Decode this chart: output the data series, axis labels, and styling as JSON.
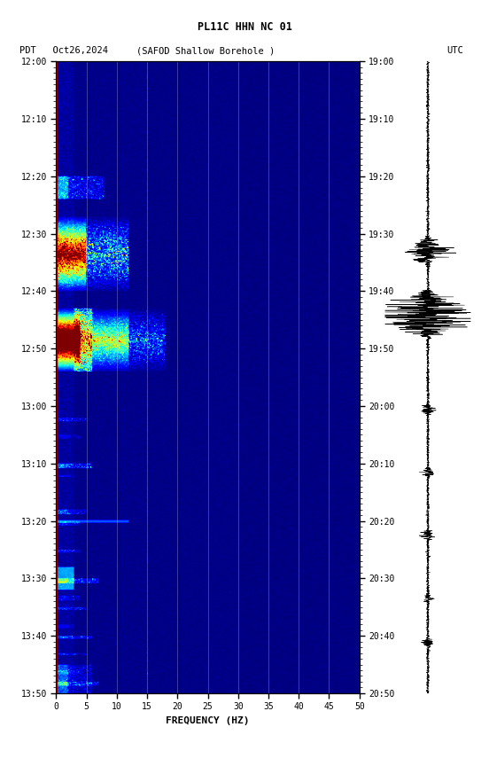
{
  "title_line1": "PL11C HHN NC 01",
  "title_line2_left": "PDT   Oct26,2024",
  "title_line2_center": "(SAFOD Shallow Borehole )",
  "title_line2_right": "UTC",
  "left_times": [
    "12:00",
    "12:10",
    "12:20",
    "12:30",
    "12:40",
    "12:50",
    "13:00",
    "13:10",
    "13:20",
    "13:30",
    "13:40",
    "13:50"
  ],
  "right_times": [
    "19:00",
    "19:10",
    "19:20",
    "19:30",
    "19:40",
    "19:50",
    "20:00",
    "20:10",
    "20:20",
    "20:30",
    "20:40",
    "20:50"
  ],
  "freq_ticks": [
    0,
    5,
    10,
    15,
    20,
    25,
    30,
    35,
    40,
    45,
    50
  ],
  "freq_label": "FREQUENCY (HZ)",
  "xlim": [
    0,
    50
  ],
  "n_time": 660,
  "n_freq": 500,
  "total_minutes": 110,
  "colormap": "jet",
  "fig_width": 5.52,
  "fig_height": 8.64,
  "dpi": 100
}
